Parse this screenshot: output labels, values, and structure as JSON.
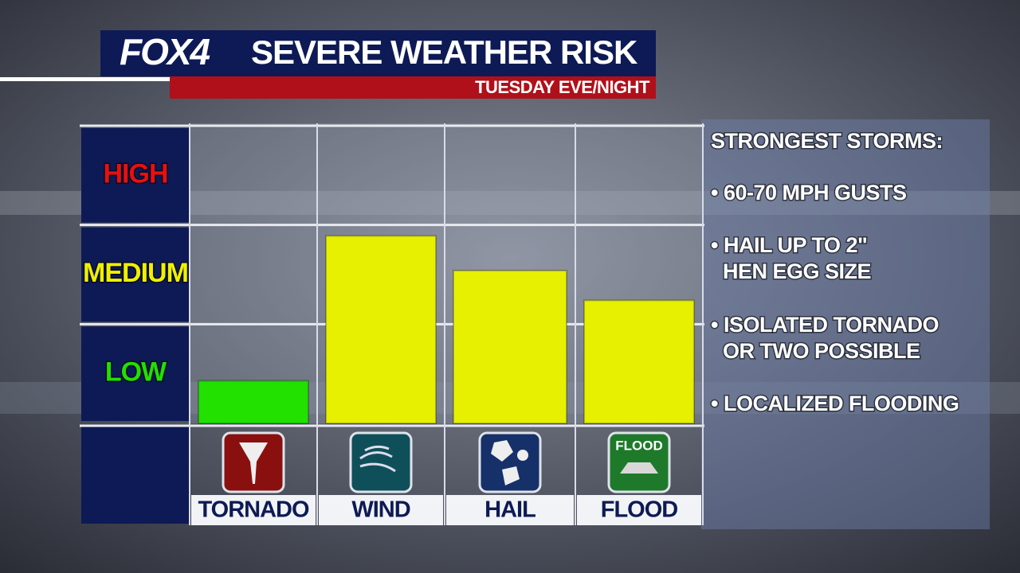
{
  "logo": "FOX4",
  "title": "SEVERE WEATHER RISK",
  "subtitle": "TUESDAY EVE/NIGHT",
  "chart_data": {
    "type": "bar",
    "categories": [
      "TORNADO",
      "WIND",
      "HAIL",
      "FLOOD"
    ],
    "values": [
      0.43,
      1.89,
      1.54,
      1.24
    ],
    "colors": [
      "#22e000",
      "#e6f000",
      "#e6f000",
      "#e6f000"
    ],
    "ylim": [
      0,
      3
    ],
    "yticks": [
      {
        "value": 0.5,
        "label": "LOW"
      },
      {
        "value": 1.5,
        "label": "MEDIUM"
      },
      {
        "value": 2.5,
        "label": "HIGH"
      }
    ],
    "ytick_colors": [
      "#22e000",
      "#f0f000",
      "#e81010"
    ],
    "icon_text": "FLOOD"
  },
  "panel": {
    "heading": "STRONGEST STORMS:",
    "bullets": [
      [
        "• 60-70 MPH GUSTS"
      ],
      [
        "• HAIL UP TO 2\"",
        "HEN EGG SIZE"
      ],
      [
        "• ISOLATED TORNADO",
        "OR TWO POSSIBLE"
      ],
      [
        "• LOCALIZED FLOODING"
      ]
    ]
  }
}
